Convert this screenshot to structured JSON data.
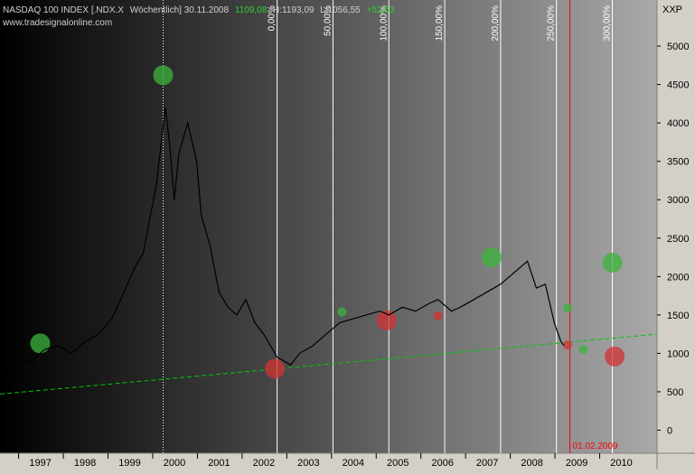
{
  "header": {
    "instrument": "NASDAQ 100 INDEX [.NDX.X",
    "period_label": "Wöchentlich] 30.11.2008",
    "close_label": "1109,08",
    "high_label": "H:1193,09",
    "low_label": "L:1056,55",
    "change_label": "+52,53",
    "website": "www.tradesignalonline.com"
  },
  "colors": {
    "background_left": "#000000",
    "background_right": "#a9a9a9",
    "price_line": "#000000",
    "trend_line": "#00c800",
    "green_marker": "#3cb43c",
    "red_marker": "#d23232",
    "cycle_line": "#ffffff",
    "marker_line": "#ff0000",
    "panel": "#d4d0c8"
  },
  "chart_data": {
    "type": "line",
    "title": "",
    "xlabel": "",
    "ylabel": "XXP",
    "x_range": [
      1996.3,
      2011.0
    ],
    "ylim": [
      -300,
      5600
    ],
    "y_ticks": [
      0,
      500,
      1000,
      1500,
      2000,
      2500,
      3000,
      3500,
      4000,
      4500,
      5000
    ],
    "x_tick_labels": [
      "1997",
      "1998",
      "1999",
      "2000",
      "2001",
      "2002",
      "2003",
      "2004",
      "2005",
      "2006",
      "2007",
      "2008",
      "2009",
      "2010"
    ],
    "x_tick_positions": [
      1997.0,
      1998.0,
      1999.0,
      2000.0,
      2001.0,
      2002.0,
      2003.0,
      2004.0,
      2005.0,
      2006.0,
      2007.0,
      2008.0,
      2009.0,
      2010.0
    ],
    "grid": false,
    "series": [
      {
        "values_x": [
          1996.3,
          1996.6,
          1997.0,
          1997.3,
          1997.6,
          1997.9,
          1998.2,
          1998.5,
          1998.8,
          1999.0,
          1999.3,
          1999.5,
          1999.8,
          2000.0,
          2000.1,
          2000.2,
          2000.3,
          2000.5,
          2000.7,
          2000.8,
          2001.0,
          2001.2,
          2001.4,
          2001.6,
          2001.8,
          2002.0,
          2002.2,
          2002.5,
          2002.8,
          2003.0,
          2003.3,
          2003.6,
          2003.9,
          2004.2,
          2004.5,
          2004.8,
          2005.0,
          2005.3,
          2005.6,
          2005.9,
          2006.1,
          2006.4,
          2006.6,
          2006.9,
          2007.2,
          2007.5,
          2007.7,
          2007.9,
          2008.1,
          2008.3,
          2008.5,
          2008.7,
          2008.85,
          2008.92
        ],
        "values_y": [
          750,
          850,
          900,
          1050,
          1100,
          1000,
          1150,
          1250,
          1450,
          1700,
          2100,
          2300,
          3200,
          4200,
          3700,
          3000,
          3600,
          4000,
          3500,
          2800,
          2400,
          1800,
          1600,
          1500,
          1700,
          1400,
          1250,
          950,
          850,
          1000,
          1100,
          1250,
          1400,
          1450,
          1500,
          1550,
          1500,
          1600,
          1550,
          1650,
          1700,
          1550,
          1600,
          1700,
          1800,
          1900,
          2000,
          2100,
          2200,
          1850,
          1900,
          1400,
          1150,
          1100
        ]
      }
    ],
    "trend_line": {
      "x": [
        1996.3,
        2011.0
      ],
      "y": [
        470,
        1250
      ]
    },
    "markers": [
      {
        "color": "green",
        "x": 1997.2,
        "y": 1130,
        "size": "large"
      },
      {
        "color": "green",
        "x": 1999.95,
        "y": 4620,
        "size": "large"
      },
      {
        "color": "red",
        "x": 2002.45,
        "y": 800,
        "size": "large"
      },
      {
        "color": "green",
        "x": 2003.95,
        "y": 1540,
        "size": "small"
      },
      {
        "color": "red",
        "x": 2004.95,
        "y": 1430,
        "size": "large"
      },
      {
        "color": "red",
        "x": 2006.1,
        "y": 1490,
        "size": "small"
      },
      {
        "color": "green",
        "x": 2007.3,
        "y": 2250,
        "size": "large"
      },
      {
        "color": "green",
        "x": 2009.0,
        "y": 1590,
        "size": "small"
      },
      {
        "color": "red",
        "x": 2009.0,
        "y": 1110,
        "size": "small"
      },
      {
        "color": "green",
        "x": 2009.35,
        "y": 1050,
        "size": "small"
      },
      {
        "color": "green",
        "x": 2010.0,
        "y": 2180,
        "size": "large"
      },
      {
        "color": "red",
        "x": 2010.05,
        "y": 960,
        "size": "large"
      }
    ],
    "cycle_lines": [
      {
        "x": 2002.5,
        "label": "0,00%"
      },
      {
        "x": 2003.75,
        "label": "50,00%"
      },
      {
        "x": 2005.0,
        "label": "100,00%"
      },
      {
        "x": 2006.25,
        "label": "150,00%"
      },
      {
        "x": 2007.5,
        "label": "200,00%"
      },
      {
        "x": 2008.75,
        "label": "250,00%"
      },
      {
        "x": 2010.0,
        "label": "300,00%"
      }
    ],
    "dotted_line_x": 1999.95,
    "date_marker": {
      "x": 2009.05,
      "label": "01.02.2009"
    }
  }
}
